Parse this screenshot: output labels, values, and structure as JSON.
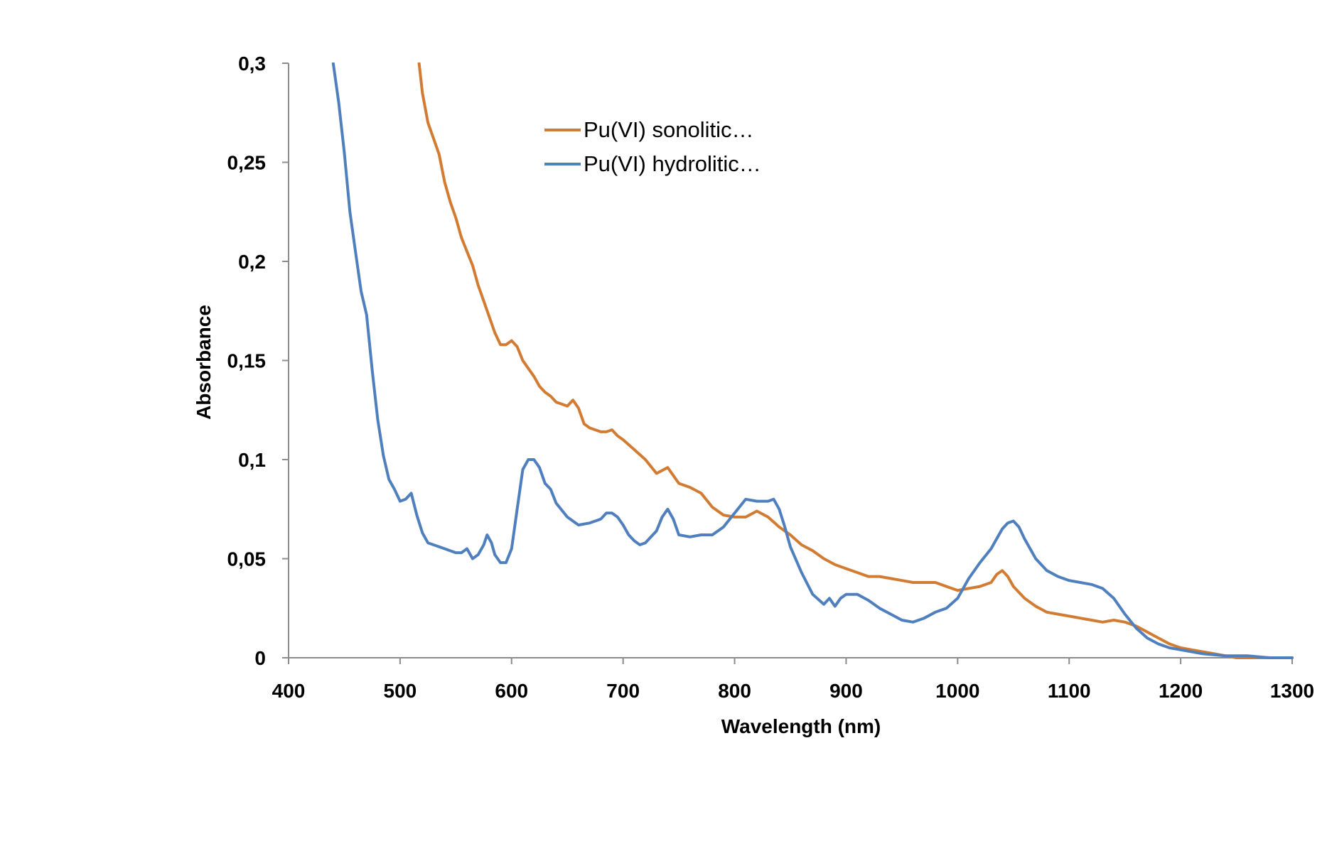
{
  "chart_data": {
    "type": "line",
    "title": "",
    "xlabel": "Wavelength (nm)",
    "ylabel": "Absorbance",
    "xlim": [
      400,
      1300
    ],
    "ylim": [
      0,
      0.3
    ],
    "x_ticks": [
      {
        "value": 400,
        "label": "400"
      },
      {
        "value": 500,
        "label": "500"
      },
      {
        "value": 600,
        "label": "600"
      },
      {
        "value": 700,
        "label": "700"
      },
      {
        "value": 800,
        "label": "800"
      },
      {
        "value": 900,
        "label": "900"
      },
      {
        "value": 1000,
        "label": "1000"
      },
      {
        "value": 1100,
        "label": "1100"
      },
      {
        "value": 1200,
        "label": "1200"
      },
      {
        "value": 1300,
        "label": "1300"
      }
    ],
    "y_ticks": [
      {
        "value": 0,
        "label": "0"
      },
      {
        "value": 0.05,
        "label": "0,05"
      },
      {
        "value": 0.1,
        "label": "0,1"
      },
      {
        "value": 0.15,
        "label": "0,15"
      },
      {
        "value": 0.2,
        "label": "0,2"
      },
      {
        "value": 0.25,
        "label": "0,25"
      },
      {
        "value": 0.3,
        "label": "0,3"
      }
    ],
    "grid": false,
    "legend_position": "top-center",
    "series": [
      {
        "name": "Pu(VI) sonolitic…",
        "color": "#d27b33",
        "x": [
          517,
          520,
          525,
          530,
          535,
          540,
          545,
          550,
          555,
          560,
          565,
          570,
          575,
          580,
          585,
          590,
          595,
          600,
          605,
          610,
          615,
          620,
          625,
          630,
          635,
          640,
          645,
          650,
          655,
          660,
          665,
          670,
          675,
          680,
          685,
          690,
          695,
          700,
          710,
          720,
          730,
          740,
          750,
          760,
          770,
          780,
          790,
          800,
          810,
          820,
          830,
          840,
          850,
          860,
          870,
          880,
          890,
          900,
          910,
          920,
          930,
          940,
          950,
          960,
          970,
          980,
          990,
          1000,
          1010,
          1020,
          1030,
          1035,
          1040,
          1045,
          1050,
          1055,
          1060,
          1070,
          1080,
          1090,
          1100,
          1110,
          1120,
          1130,
          1140,
          1150,
          1160,
          1170,
          1180,
          1190,
          1200,
          1210,
          1220,
          1230,
          1240,
          1250,
          1260,
          1270,
          1280,
          1290,
          1300
        ],
        "values": [
          0.3,
          0.285,
          0.27,
          0.262,
          0.254,
          0.24,
          0.23,
          0.222,
          0.212,
          0.205,
          0.198,
          0.188,
          0.18,
          0.172,
          0.164,
          0.158,
          0.158,
          0.16,
          0.157,
          0.15,
          0.146,
          0.142,
          0.137,
          0.134,
          0.132,
          0.129,
          0.128,
          0.127,
          0.13,
          0.126,
          0.118,
          0.116,
          0.115,
          0.114,
          0.114,
          0.115,
          0.112,
          0.11,
          0.105,
          0.1,
          0.093,
          0.096,
          0.088,
          0.086,
          0.083,
          0.076,
          0.072,
          0.071,
          0.071,
          0.074,
          0.071,
          0.066,
          0.062,
          0.057,
          0.054,
          0.05,
          0.047,
          0.045,
          0.043,
          0.041,
          0.041,
          0.04,
          0.039,
          0.038,
          0.038,
          0.038,
          0.036,
          0.034,
          0.035,
          0.036,
          0.038,
          0.042,
          0.044,
          0.041,
          0.036,
          0.033,
          0.03,
          0.026,
          0.023,
          0.022,
          0.021,
          0.02,
          0.019,
          0.018,
          0.019,
          0.018,
          0.016,
          0.013,
          0.01,
          0.007,
          0.005,
          0.004,
          0.003,
          0.002,
          0.001,
          0.0,
          0.0,
          0.0,
          0.0,
          0.0,
          0.0
        ]
      },
      {
        "name": "Pu(VI) hydrolitic…",
        "color": "#4f7fbd",
        "x": [
          440,
          445,
          450,
          455,
          460,
          465,
          470,
          475,
          480,
          485,
          490,
          495,
          500,
          505,
          510,
          515,
          520,
          525,
          530,
          540,
          550,
          555,
          560,
          565,
          570,
          575,
          578,
          582,
          585,
          590,
          595,
          600,
          605,
          610,
          615,
          620,
          625,
          630,
          635,
          640,
          650,
          660,
          670,
          680,
          685,
          690,
          695,
          700,
          705,
          710,
          715,
          720,
          725,
          730,
          735,
          740,
          745,
          750,
          760,
          770,
          780,
          790,
          800,
          810,
          820,
          830,
          835,
          840,
          845,
          850,
          860,
          870,
          880,
          885,
          890,
          895,
          900,
          910,
          920,
          930,
          940,
          950,
          960,
          970,
          980,
          990,
          1000,
          1010,
          1020,
          1030,
          1035,
          1040,
          1045,
          1050,
          1055,
          1060,
          1070,
          1080,
          1090,
          1100,
          1110,
          1120,
          1130,
          1140,
          1150,
          1160,
          1170,
          1180,
          1190,
          1200,
          1220,
          1240,
          1260,
          1280,
          1300
        ],
        "values": [
          0.3,
          0.28,
          0.255,
          0.225,
          0.205,
          0.185,
          0.173,
          0.145,
          0.12,
          0.102,
          0.09,
          0.085,
          0.079,
          0.08,
          0.083,
          0.072,
          0.063,
          0.058,
          0.057,
          0.055,
          0.053,
          0.053,
          0.055,
          0.05,
          0.052,
          0.057,
          0.062,
          0.058,
          0.052,
          0.048,
          0.048,
          0.055,
          0.075,
          0.095,
          0.1,
          0.1,
          0.096,
          0.088,
          0.085,
          0.078,
          0.071,
          0.067,
          0.068,
          0.07,
          0.073,
          0.073,
          0.071,
          0.067,
          0.062,
          0.059,
          0.057,
          0.058,
          0.061,
          0.064,
          0.071,
          0.075,
          0.07,
          0.062,
          0.061,
          0.062,
          0.062,
          0.066,
          0.073,
          0.08,
          0.079,
          0.079,
          0.08,
          0.075,
          0.066,
          0.056,
          0.043,
          0.032,
          0.027,
          0.03,
          0.026,
          0.03,
          0.032,
          0.032,
          0.029,
          0.025,
          0.022,
          0.019,
          0.018,
          0.02,
          0.023,
          0.025,
          0.03,
          0.04,
          0.048,
          0.055,
          0.06,
          0.065,
          0.068,
          0.069,
          0.066,
          0.06,
          0.05,
          0.044,
          0.041,
          0.039,
          0.038,
          0.037,
          0.035,
          0.03,
          0.022,
          0.015,
          0.01,
          0.007,
          0.005,
          0.004,
          0.002,
          0.001,
          0.001,
          0.0,
          0.0
        ]
      }
    ]
  }
}
